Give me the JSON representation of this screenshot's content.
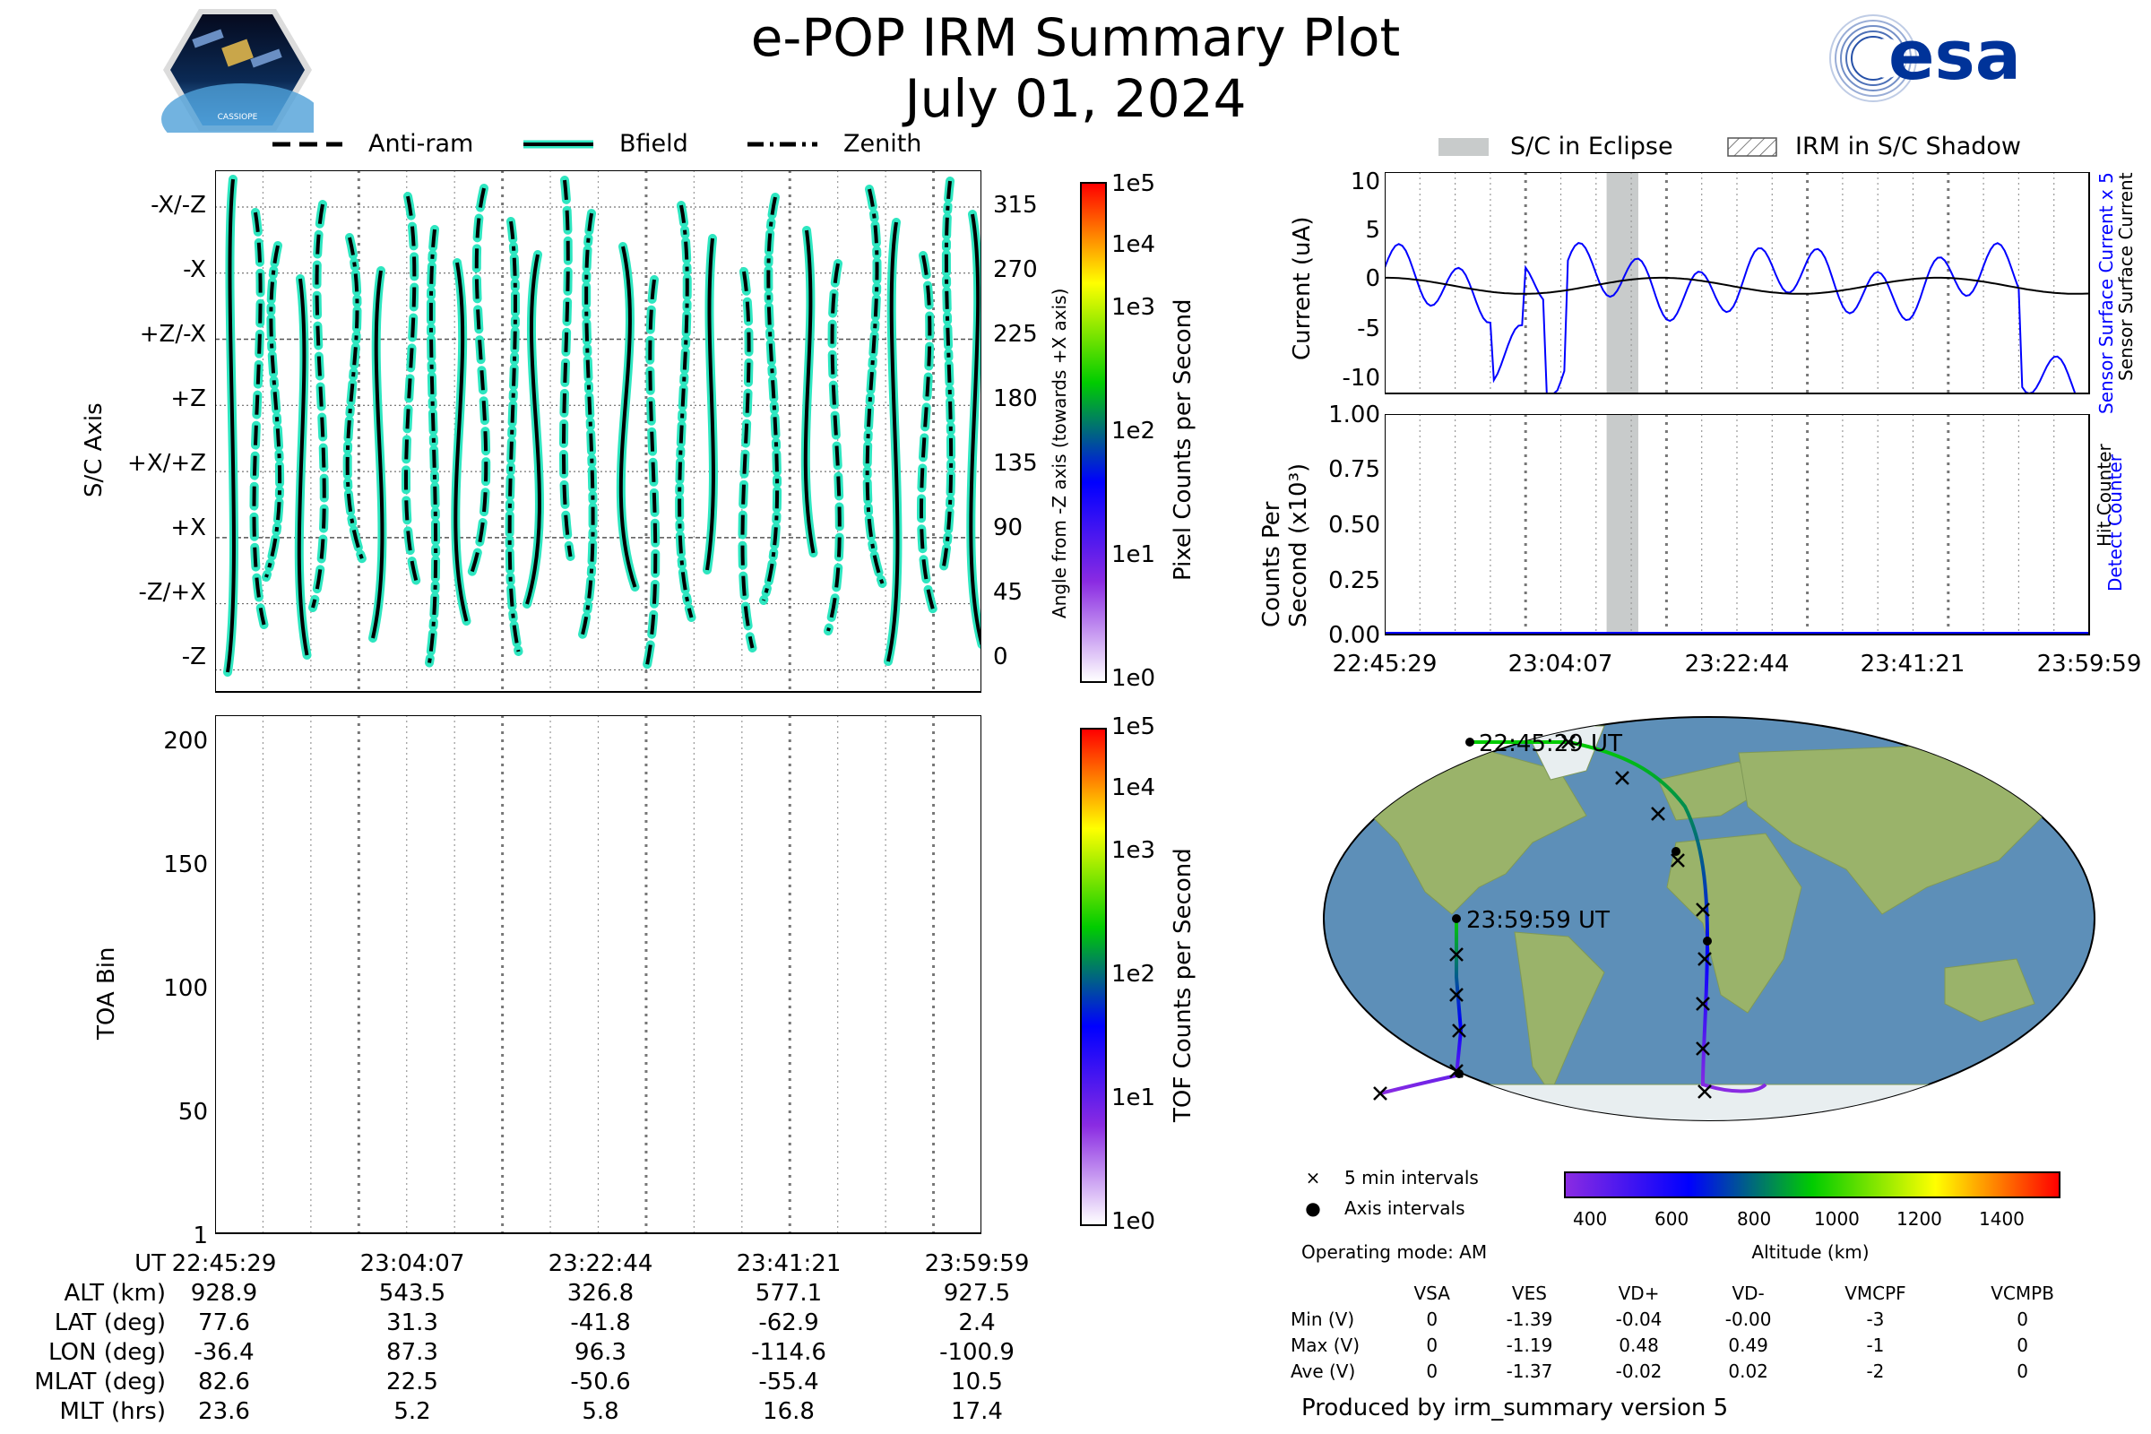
{
  "header": {
    "title": "e-POP IRM Summary Plot",
    "date": "July 01, 2024",
    "logo_left_text": "CASSIOPE",
    "logo_right_text": "esa"
  },
  "colors": {
    "trace_glow": "#2ee6c0",
    "trace_line": "#000000",
    "sensor_current": "#0000ff",
    "detect_counter": "#0000ff",
    "eclipse": "#c8cbcb",
    "colormap": [
      "#ffffff",
      "#8a2be2",
      "#0000ff",
      "#00cc00",
      "#ffff00",
      "#ff0000"
    ]
  },
  "axis_legend": {
    "items": [
      {
        "label": "Anti-ram",
        "style": "dashed"
      },
      {
        "label": "Bfield",
        "style": "solid"
      },
      {
        "label": "Zenith",
        "style": "dash-dot"
      }
    ]
  },
  "chart_data": [
    {
      "type": "line",
      "name": "sc-axis-panel",
      "ylabel": "S/C Axis",
      "y2label": "Angle from -Z axis (towards +X axis)",
      "ylim": [
        -15,
        340
      ],
      "yticks_left": [
        "-X/-Z",
        "-X",
        "+Z/-X",
        "+Z",
        "+X/+Z",
        "+X",
        "-Z/+X",
        "-Z"
      ],
      "yticks_right": [
        "315",
        "270",
        "225",
        "180",
        "135",
        "90",
        "45",
        "0"
      ],
      "ytick_values": [
        315,
        270,
        225,
        180,
        135,
        90,
        45,
        0
      ],
      "grid": true,
      "colorbar": {
        "label": "Pixel Counts per Second",
        "scale": "log",
        "ticks": [
          "1e5",
          "1e4",
          "1e3",
          "1e2",
          "1e1",
          "1e0"
        ]
      }
    },
    {
      "type": "heatmap",
      "name": "toa-panel",
      "ylabel": "TOA Bin",
      "ylim": [
        1,
        210
      ],
      "yticks": [
        "200",
        "150",
        "100",
        "50",
        "1"
      ],
      "ytick_values": [
        200,
        150,
        100,
        50,
        1
      ],
      "grid": true,
      "colorbar": {
        "label": "TOF Counts per Second",
        "scale": "log",
        "ticks": [
          "1e5",
          "1e4",
          "1e3",
          "1e2",
          "1e1",
          "1e0"
        ]
      }
    },
    {
      "type": "line",
      "name": "current-panel",
      "ylabel": "Current (uA)",
      "ylim": [
        -11,
        11
      ],
      "yticks": [
        "10",
        "5",
        "0",
        "-5",
        "-10"
      ],
      "ytick_values": [
        10,
        5,
        0,
        -5,
        -10
      ],
      "right_label_1": "Sensor Surface Current x 5",
      "right_label_2": "Sensor Surface Current",
      "series": [
        {
          "name": "Sensor Surface Current x 5",
          "color": "#0000ff"
        },
        {
          "name": "Sensor Surface Current",
          "color": "#000000"
        }
      ],
      "legend": [
        "S/C in Eclipse",
        "IRM in S/C Shadow"
      ],
      "legend_position": "top"
    },
    {
      "type": "line",
      "name": "counts-panel",
      "ylabel_1": "Counts Per",
      "ylabel_2": "Second (x10³)",
      "ylim": [
        0,
        1
      ],
      "yticks": [
        "1.00",
        "0.75",
        "0.50",
        "0.25",
        "0.00"
      ],
      "ytick_values": [
        1.0,
        0.75,
        0.5,
        0.25,
        0.0
      ],
      "right_label_1": "Detect Counter",
      "right_label_2": "Hit Counter",
      "series": [
        {
          "name": "Detect Counter",
          "values": [
            0,
            0,
            0,
            0,
            0
          ]
        },
        {
          "name": "Hit Counter",
          "values": [
            0,
            0,
            0,
            0,
            0
          ]
        }
      ],
      "xticks": [
        "22:45:29",
        "23:04:07",
        "23:22:44",
        "23:41:21",
        "23:59:59"
      ]
    },
    {
      "type": "scatter",
      "name": "orbit-map",
      "start_label": "22:45:29 UT",
      "end_label": "23:59:59 UT",
      "legend": [
        "5 min intervals",
        "Axis intervals"
      ],
      "colorbar": {
        "label": "Altitude (km)",
        "ticks": [
          "400",
          "600",
          "800",
          "1000",
          "1200",
          "1400"
        ],
        "range": [
          300,
          1500
        ]
      }
    }
  ],
  "ephemeris": {
    "row_labels": [
      "UT",
      "ALT (km)",
      "LAT (deg)",
      "LON (deg)",
      "MLAT (deg)",
      "MLT (hrs)"
    ],
    "columns": [
      [
        "22:45:29",
        "928.9",
        "77.6",
        "-36.4",
        "82.6",
        "23.6"
      ],
      [
        "23:04:07",
        "543.5",
        "31.3",
        "87.3",
        "22.5",
        "5.2"
      ],
      [
        "23:22:44",
        "326.8",
        "-41.8",
        "96.3",
        "-50.6",
        "5.8"
      ],
      [
        "23:41:21",
        "577.1",
        "-62.9",
        "-114.6",
        "-55.4",
        "16.8"
      ],
      [
        "23:59:59",
        "927.5",
        "2.4",
        "-100.9",
        "10.5",
        "17.4"
      ]
    ]
  },
  "operating_mode": "Operating mode: AM",
  "voltages": {
    "headers": [
      "",
      "VSA",
      "VES",
      "VD+",
      "VD-",
      "VMCPF",
      "VCMPB"
    ],
    "rows": [
      [
        "Min (V)",
        "0",
        "-1.39",
        "-0.04",
        "-0.00",
        "-3",
        "0"
      ],
      [
        "Max (V)",
        "0",
        "-1.19",
        "0.48",
        "0.49",
        "-1",
        "0"
      ],
      [
        "Ave (V)",
        "0",
        "-1.37",
        "-0.02",
        "0.02",
        "-2",
        "0"
      ]
    ]
  },
  "footer": "Produced by irm_summary version 5"
}
